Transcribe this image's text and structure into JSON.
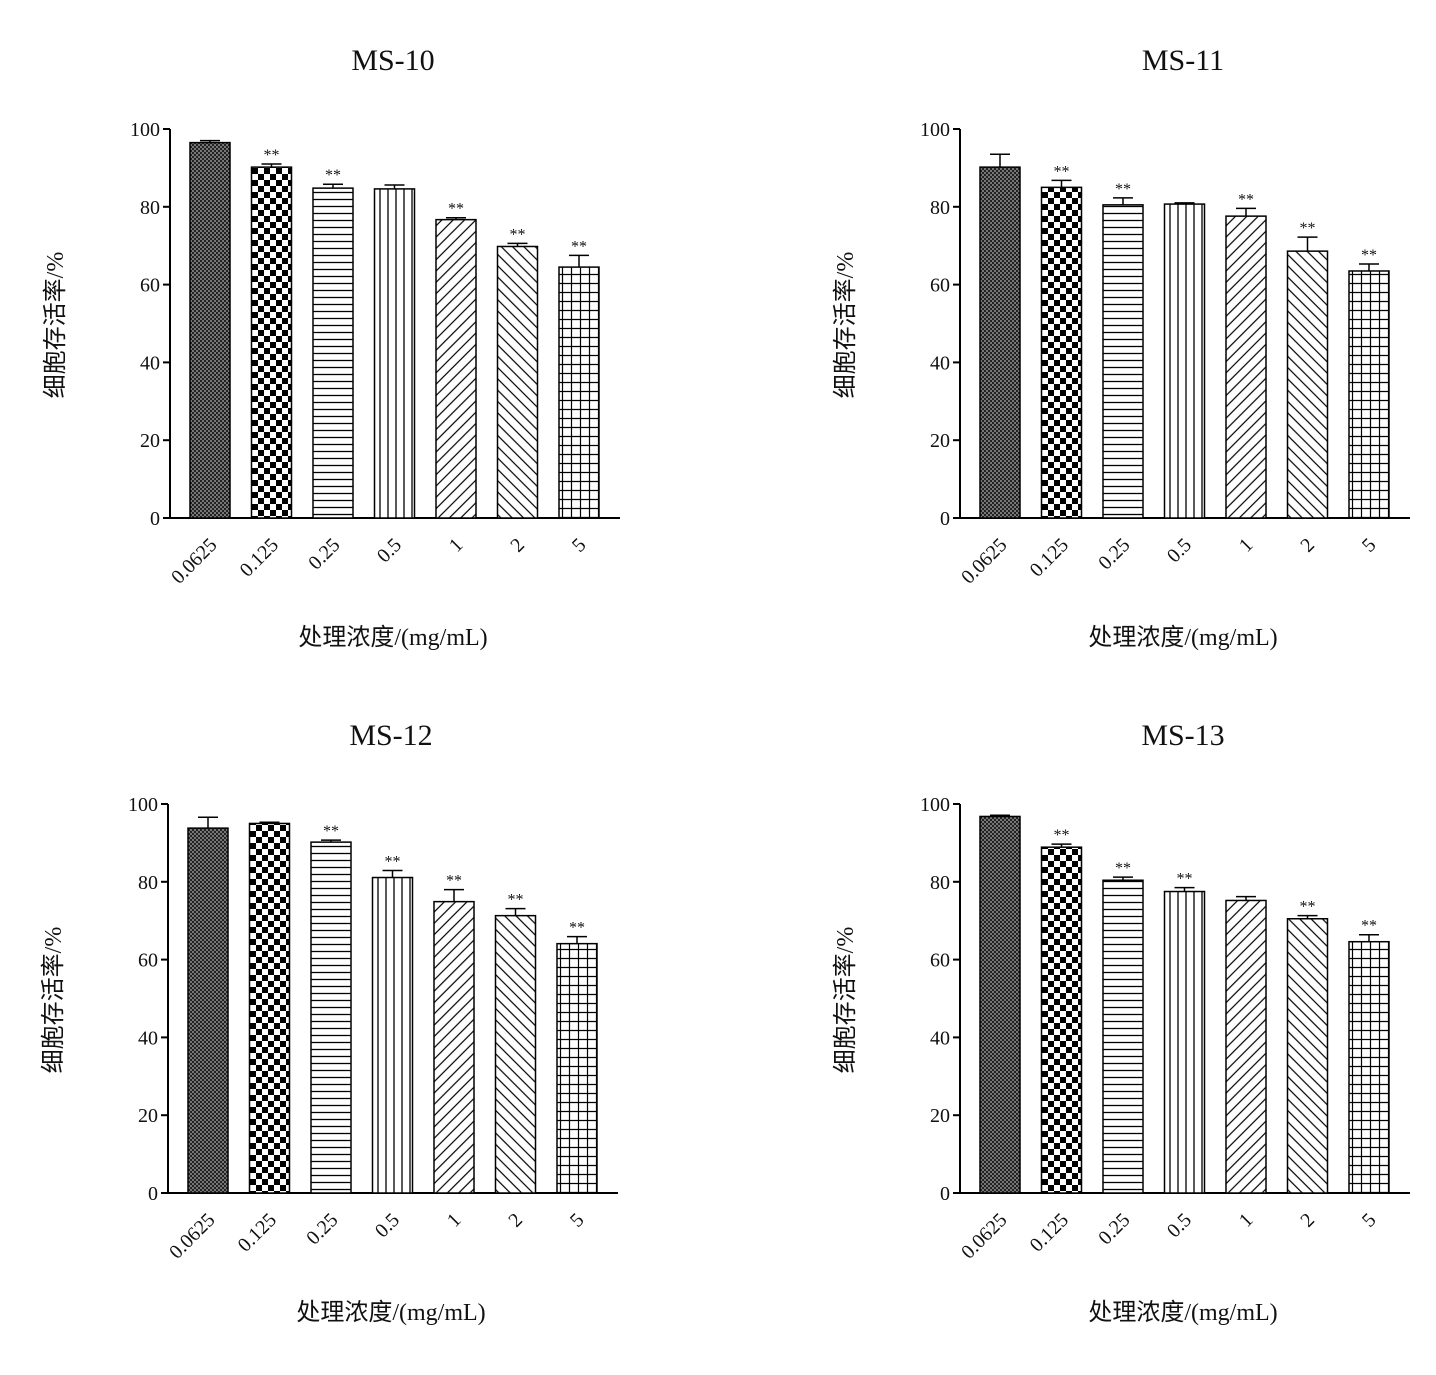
{
  "chart_data": [
    {
      "type": "bar",
      "title": "MS-10",
      "xlabel": "处理浓度/(mg/mL)",
      "ylabel": "细胞存活率/%",
      "categories": [
        "0.0625",
        "0.125",
        "0.25",
        "0.5",
        "1",
        "2",
        "5"
      ],
      "values": [
        96.5,
        90.2,
        84.8,
        84.6,
        76.7,
        69.8,
        64.5
      ],
      "errors": [
        0.5,
        0.8,
        1.0,
        1.0,
        0.5,
        0.8,
        3.0
      ],
      "significance": [
        "",
        "**",
        "**",
        "",
        "**",
        "**",
        "**"
      ],
      "ylim": [
        0,
        100
      ],
      "yticks": [
        0,
        20,
        40,
        60,
        80,
        100
      ]
    },
    {
      "type": "bar",
      "title": "MS-11",
      "xlabel": "处理浓度/(mg/mL)",
      "ylabel": "细胞存活率/%",
      "categories": [
        "0.0625",
        "0.125",
        "0.25",
        "0.5",
        "1",
        "2",
        "5"
      ],
      "values": [
        90.2,
        85.0,
        80.5,
        80.7,
        77.6,
        68.6,
        63.5
      ],
      "errors": [
        3.3,
        1.8,
        1.8,
        0.3,
        2.0,
        3.6,
        1.8
      ],
      "significance": [
        "",
        "**",
        "**",
        "",
        "**",
        "**",
        "**"
      ],
      "ylim": [
        0,
        100
      ],
      "yticks": [
        0,
        20,
        40,
        60,
        80,
        100
      ]
    },
    {
      "type": "bar",
      "title": "MS-12",
      "xlabel": "处理浓度/(mg/mL)",
      "ylabel": "细胞存活率/%",
      "categories": [
        "0.0625",
        "0.125",
        "0.25",
        "0.5",
        "1",
        "2",
        "5"
      ],
      "values": [
        93.8,
        95.0,
        90.2,
        81.1,
        74.9,
        71.3,
        64.1
      ],
      "errors": [
        2.8,
        0.3,
        0.5,
        1.8,
        3.1,
        1.8,
        1.8
      ],
      "significance": [
        "",
        "",
        "**",
        "**",
        "**",
        "**",
        "**"
      ],
      "ylim": [
        0,
        100
      ],
      "yticks": [
        0,
        20,
        40,
        60,
        80,
        100
      ]
    },
    {
      "type": "bar",
      "title": "MS-13",
      "xlabel": "处理浓度/(mg/mL)",
      "ylabel": "细胞存活率/%",
      "categories": [
        "0.0625",
        "0.125",
        "0.25",
        "0.5",
        "1",
        "2",
        "5"
      ],
      "values": [
        96.8,
        88.9,
        80.4,
        77.5,
        75.2,
        70.5,
        64.6
      ],
      "errors": [
        0.3,
        0.8,
        0.8,
        1.0,
        1.0,
        0.8,
        1.8
      ],
      "significance": [
        "",
        "**",
        "**",
        "**",
        "",
        "**",
        "**"
      ],
      "ylim": [
        0,
        100
      ],
      "yticks": [
        0,
        20,
        40,
        60,
        80,
        100
      ]
    }
  ],
  "bar_patterns": [
    "fine-crosshatch",
    "checkerboard",
    "horizontal-lines",
    "vertical-lines",
    "diagonal-forward",
    "diagonal-back",
    "grid"
  ],
  "colors": {
    "ink": "#111111",
    "background": "#ffffff"
  }
}
